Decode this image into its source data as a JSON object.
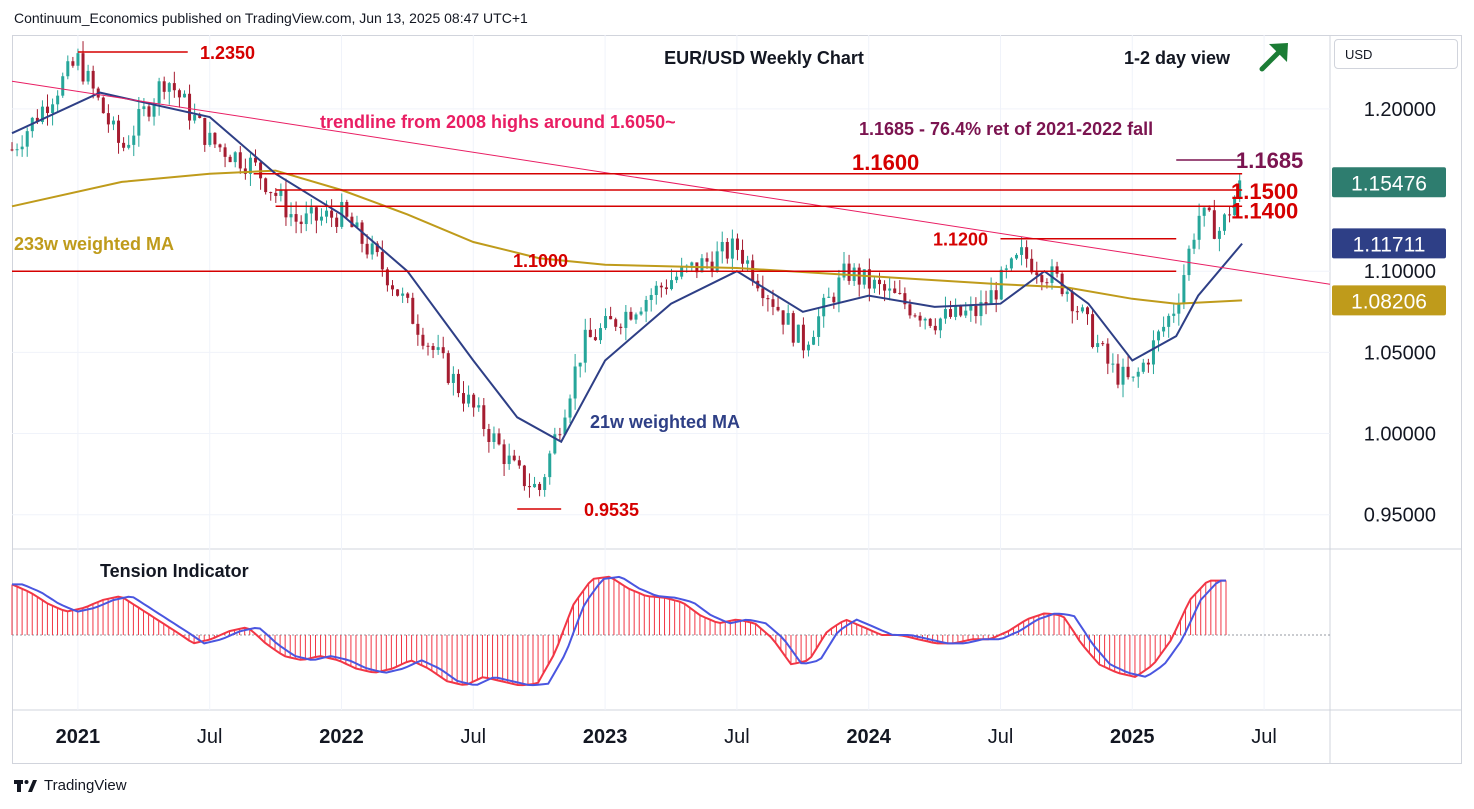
{
  "header": {
    "attribution": "Continuum_Economics published on TradingView.com, Jun 13, 2025 08:47 UTC+1"
  },
  "currency": "USD",
  "footer": {
    "brand": "TradingView",
    "logo": "tradingview-logo-icon"
  },
  "colors": {
    "up": "#26a69a",
    "down": "#a51c30",
    "red_level": "#d50000",
    "trendline": "#e91e63",
    "wma21": "#2e3f86",
    "wma233": "#bf9b1b",
    "fib_text": "#7b1450",
    "green_arrow": "#1b7c35",
    "price_badge": "#2e7d6f",
    "wma21_badge": "#2e3f86",
    "wma233_badge": "#bf9b1b",
    "tension_hist": "#f23645",
    "tension_fast": "#f23645",
    "tension_slow": "#4a56e0"
  },
  "chart_data": {
    "type": "line",
    "title": "EUR/USD Weekly Chart",
    "subtitle": "1-2 day view",
    "view_icon": "up-right-arrow-icon",
    "y_axis": {
      "ticks": [
        "1.20000",
        "1.10000",
        "1.05000",
        "1.00000",
        "0.95000"
      ],
      "ylim": [
        0.9295,
        1.2455
      ]
    },
    "x_axis": {
      "ticks": [
        "2021",
        "Jul",
        "2022",
        "Jul",
        "2023",
        "Jul",
        "2024",
        "Jul",
        "2025",
        "Jul"
      ],
      "xlim": [
        "2020-10",
        "2025-10"
      ]
    },
    "price_labels": [
      {
        "text": "1.15476",
        "series": "price"
      },
      {
        "text": "1.11711",
        "series": "21w weighted MA"
      },
      {
        "text": "1.08206",
        "series": "233w weighted MA"
      }
    ],
    "levels": [
      {
        "label": "1.2350",
        "value": 1.235,
        "from": "2021-01",
        "to": "2021-06"
      },
      {
        "label": "1.1600",
        "value": 1.16,
        "from": "2021-09",
        "to": "2025-06"
      },
      {
        "label": "1.1500",
        "value": 1.15,
        "from": "2021-10",
        "to": "2025-06"
      },
      {
        "label": "1.1400",
        "value": 1.14,
        "from": "2021-10",
        "to": "2025-06"
      },
      {
        "label": "1.1200",
        "value": 1.12,
        "from": "2024-07",
        "to": "2025-03"
      },
      {
        "label": "1.1000",
        "value": 1.1,
        "from": "2020-10",
        "to": "2025-03"
      },
      {
        "label": "0.9535",
        "value": 0.9535,
        "from": "2022-09",
        "to": "2022-11"
      },
      {
        "label": "1.1685",
        "value": 1.1685,
        "from": "2025-03",
        "to": "2025-06"
      }
    ],
    "annotations": [
      "trendline from 2008 highs around 1.6050~",
      "1.1685 - 76.4% ret of 2021-2022 fall",
      "233w weighted MA",
      "21w weighted MA"
    ],
    "trendline": {
      "from": [
        "2020-10",
        1.217
      ],
      "to": [
        "2025-10",
        1.092
      ]
    },
    "price_path": [
      [
        "2020-10",
        1.175
      ],
      [
        "2021-01",
        1.23
      ],
      [
        "2021-03",
        1.175
      ],
      [
        "2021-05",
        1.22
      ],
      [
        "2021-07",
        1.18
      ],
      [
        "2021-09",
        1.165
      ],
      [
        "2021-11",
        1.13
      ],
      [
        "2022-01",
        1.135
      ],
      [
        "2022-03",
        1.1
      ],
      [
        "2022-05",
        1.055
      ],
      [
        "2022-07",
        1.015
      ],
      [
        "2022-09",
        0.975
      ],
      [
        "2022-10",
        0.965
      ],
      [
        "2022-12",
        1.055
      ],
      [
        "2023-02",
        1.075
      ],
      [
        "2023-04",
        1.095
      ],
      [
        "2023-07",
        1.115
      ],
      [
        "2023-10",
        1.055
      ],
      [
        "2023-12",
        1.1
      ],
      [
        "2024-04",
        1.07
      ],
      [
        "2024-06",
        1.075
      ],
      [
        "2024-08",
        1.11
      ],
      [
        "2024-10",
        1.09
      ],
      [
        "2024-12",
        1.04
      ],
      [
        "2025-01",
        1.03
      ],
      [
        "2025-03",
        1.08
      ],
      [
        "2025-04",
        1.135
      ],
      [
        "2025-05",
        1.125
      ],
      [
        "2025-06",
        1.155
      ]
    ],
    "series": [
      {
        "name": "21w weighted MA",
        "points": [
          [
            "2020-10",
            1.185
          ],
          [
            "2021-02",
            1.21
          ],
          [
            "2021-07",
            1.195
          ],
          [
            "2021-10",
            1.16
          ],
          [
            "2022-01",
            1.135
          ],
          [
            "2022-04",
            1.1
          ],
          [
            "2022-07",
            1.045
          ],
          [
            "2022-09",
            1.01
          ],
          [
            "2022-11",
            0.995
          ],
          [
            "2023-01",
            1.045
          ],
          [
            "2023-04",
            1.08
          ],
          [
            "2023-07",
            1.1
          ],
          [
            "2023-10",
            1.075
          ],
          [
            "2024-01",
            1.085
          ],
          [
            "2024-04",
            1.078
          ],
          [
            "2024-07",
            1.08
          ],
          [
            "2024-09",
            1.1
          ],
          [
            "2024-11",
            1.08
          ],
          [
            "2025-01",
            1.045
          ],
          [
            "2025-03",
            1.06
          ],
          [
            "2025-04",
            1.085
          ],
          [
            "2025-06",
            1.117
          ]
        ]
      },
      {
        "name": "233w weighted MA",
        "points": [
          [
            "2020-10",
            1.14
          ],
          [
            "2021-03",
            1.155
          ],
          [
            "2021-07",
            1.16
          ],
          [
            "2021-10",
            1.162
          ],
          [
            "2022-01",
            1.15
          ],
          [
            "2022-04",
            1.135
          ],
          [
            "2022-07",
            1.118
          ],
          [
            "2022-10",
            1.108
          ],
          [
            "2023-01",
            1.104
          ],
          [
            "2023-07",
            1.102
          ],
          [
            "2024-01",
            1.097
          ],
          [
            "2024-07",
            1.092
          ],
          [
            "2024-10",
            1.09
          ],
          [
            "2025-01",
            1.083
          ],
          [
            "2025-03",
            1.08
          ],
          [
            "2025-06",
            1.082
          ]
        ]
      }
    ],
    "tension_indicator": {
      "title": "Tension Indicator",
      "ylim": [
        -0.75,
        0.9
      ],
      "values": [
        0.65,
        0.55,
        0.4,
        0.3,
        0.35,
        0.45,
        0.5,
        0.35,
        0.2,
        0.05,
        -0.1,
        -0.05,
        0.05,
        0.1,
        -0.1,
        -0.25,
        -0.3,
        -0.25,
        -0.3,
        -0.4,
        -0.45,
        -0.4,
        -0.3,
        -0.4,
        -0.55,
        -0.6,
        -0.5,
        -0.55,
        -0.6,
        -0.58,
        -0.2,
        0.4,
        0.72,
        0.75,
        0.6,
        0.5,
        0.48,
        0.42,
        0.25,
        0.15,
        0.2,
        0.15,
        -0.05,
        -0.35,
        -0.3,
        0.05,
        0.2,
        0.1,
        0.0,
        0.0,
        -0.05,
        -0.1,
        -0.1,
        -0.05,
        -0.05,
        0.05,
        0.2,
        0.28,
        0.25,
        -0.1,
        -0.35,
        -0.45,
        -0.5,
        -0.35,
        -0.05,
        0.45,
        0.7,
        0.7
      ]
    },
    "grid": true
  }
}
